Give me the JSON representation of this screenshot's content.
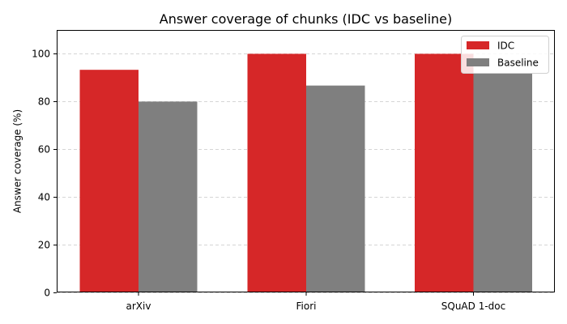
{
  "chart_data": {
    "type": "bar",
    "title": "Answer coverage of chunks (IDC vs baseline)",
    "xlabel": "",
    "ylabel": "Answer coverage (%)",
    "categories": [
      "arXiv",
      "Fiori",
      "SQuAD 1-doc"
    ],
    "series": [
      {
        "name": "IDC",
        "color": "#d62728",
        "values": [
          93.3,
          100,
          100
        ]
      },
      {
        "name": "Baseline",
        "color": "#7f7f7f",
        "values": [
          80,
          86.7,
          92
        ]
      }
    ],
    "ylim": [
      0,
      110
    ],
    "yticks": [
      0,
      20,
      40,
      60,
      80,
      100
    ],
    "grid": "y-dashed",
    "legend_position": "top-right"
  }
}
